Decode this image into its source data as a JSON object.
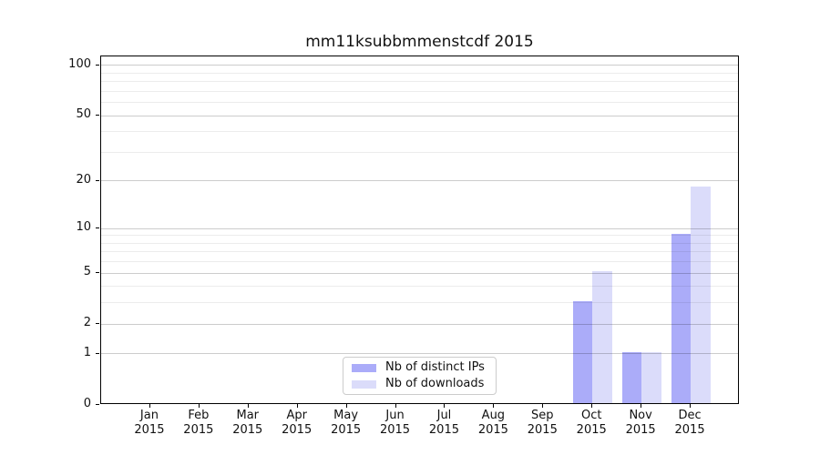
{
  "title": "mm11ksubbmmenstcdf 2015",
  "chart_data": {
    "type": "bar",
    "title": "mm11ksubbmmenstcdf 2015",
    "categories": [
      {
        "month": "Jan",
        "year": "2015"
      },
      {
        "month": "Feb",
        "year": "2015"
      },
      {
        "month": "Mar",
        "year": "2015"
      },
      {
        "month": "Apr",
        "year": "2015"
      },
      {
        "month": "May",
        "year": "2015"
      },
      {
        "month": "Jun",
        "year": "2015"
      },
      {
        "month": "Jul",
        "year": "2015"
      },
      {
        "month": "Aug",
        "year": "2015"
      },
      {
        "month": "Sep",
        "year": "2015"
      },
      {
        "month": "Oct",
        "year": "2015"
      },
      {
        "month": "Nov",
        "year": "2015"
      },
      {
        "month": "Dec",
        "year": "2015"
      }
    ],
    "series": [
      {
        "name": "Nb of distinct IPs",
        "color": "#abacf9",
        "values": [
          0,
          0,
          0,
          0,
          0,
          0,
          0,
          0,
          0,
          3,
          1,
          9
        ]
      },
      {
        "name": "Nb of downloads",
        "color": "#dbdcfa",
        "values": [
          0,
          0,
          0,
          0,
          0,
          0,
          0,
          0,
          0,
          5,
          1,
          18
        ]
      }
    ],
    "xlabel": "",
    "ylabel": "",
    "yscale": "log1p",
    "ylim": [
      0,
      113
    ],
    "y_ticks": [
      0,
      1,
      2,
      5,
      10,
      20,
      50,
      100
    ],
    "y_minor_ticks": [
      3,
      4,
      6,
      7,
      8,
      9,
      30,
      40,
      60,
      70,
      80,
      90
    ],
    "grid": true,
    "legend_position": "lower center"
  },
  "legend": {
    "items": [
      {
        "label": "Nb of distinct IPs",
        "color": "#abacf9"
      },
      {
        "label": "Nb of downloads",
        "color": "#dbdcfa"
      }
    ]
  }
}
